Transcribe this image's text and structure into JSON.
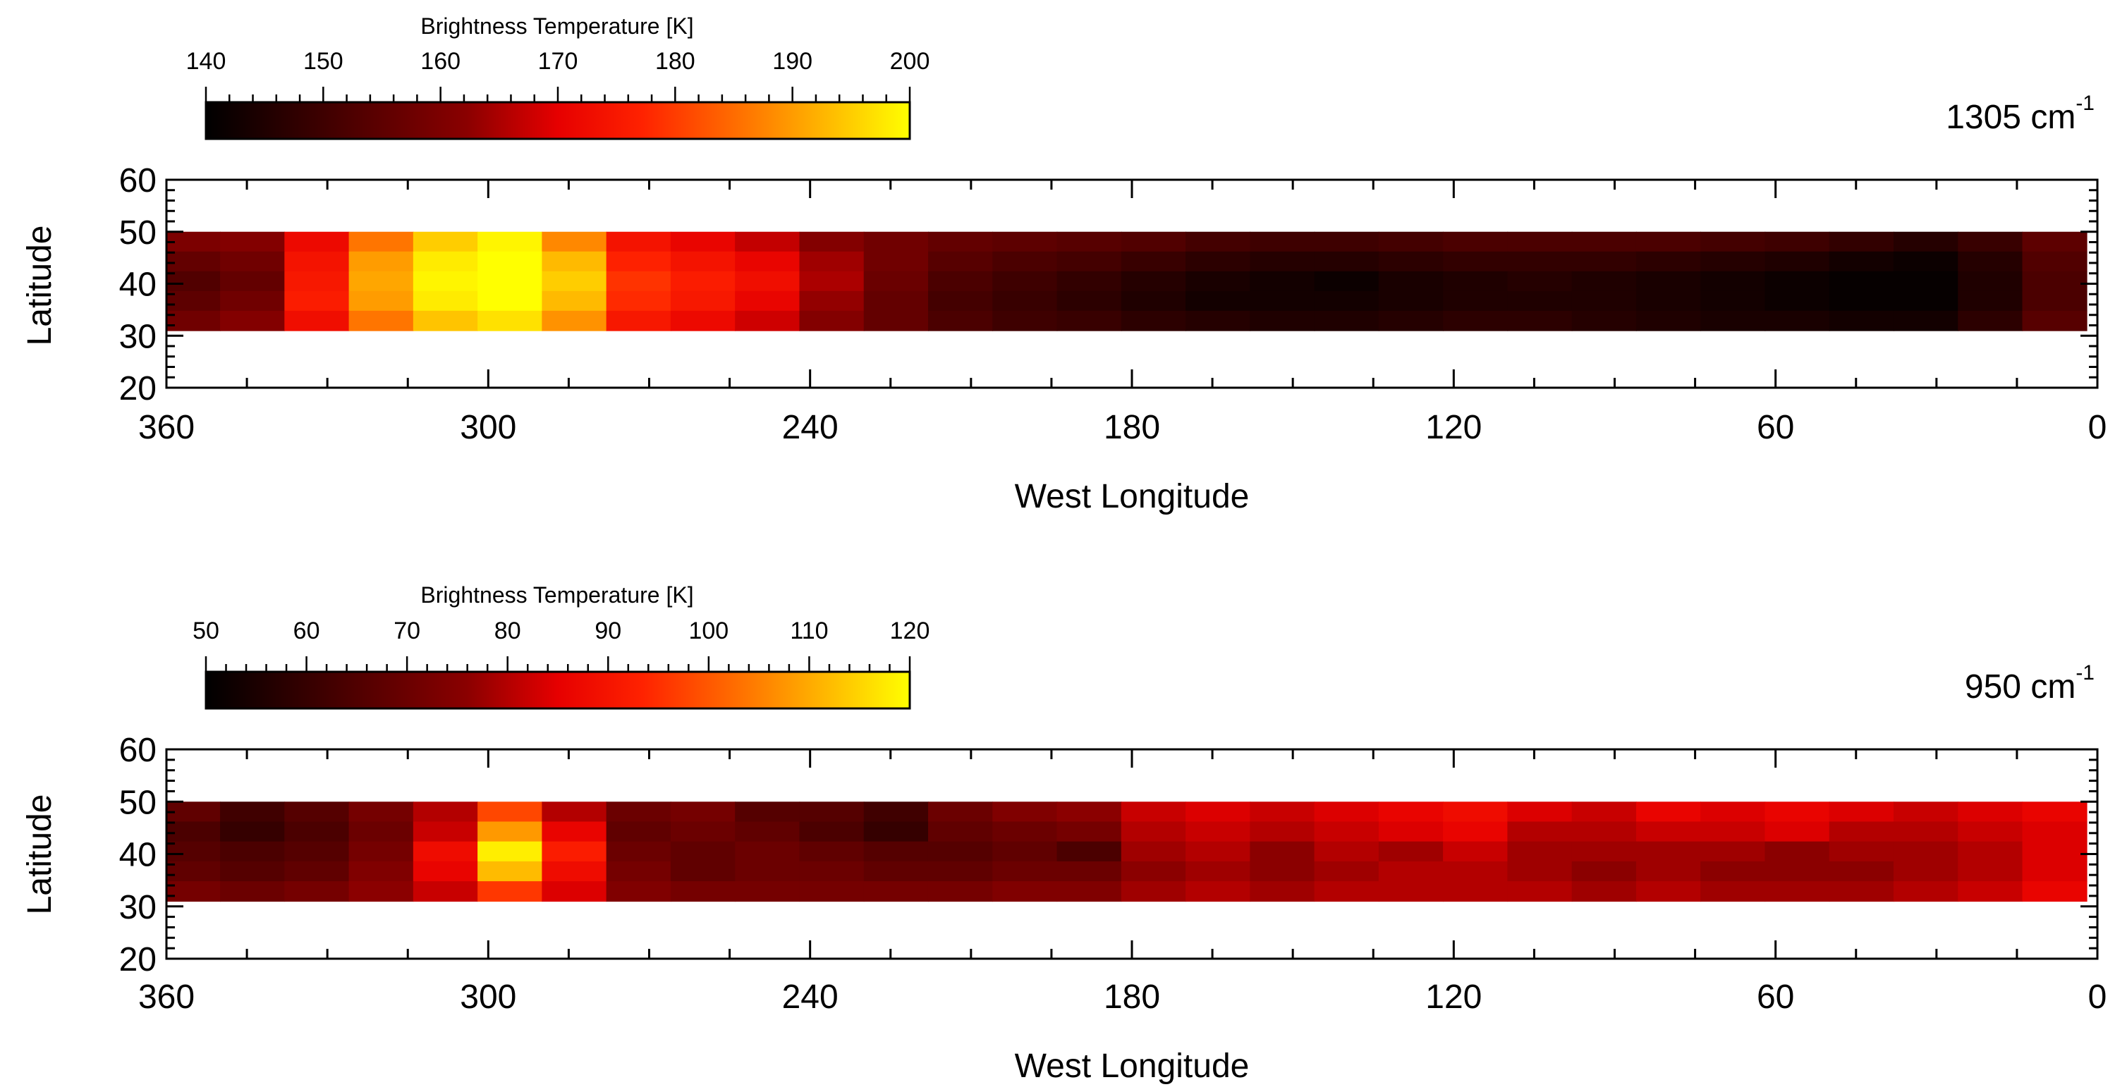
{
  "chart_data": [
    {
      "type": "heatmap",
      "wavenumber_value": "1305",
      "wavenumber_unit": "cm",
      "wavenumber_exponent": "-1",
      "colorbar": {
        "title": "Brightness Temperature [K]",
        "ticks": [
          140,
          150,
          160,
          170,
          180,
          190,
          200
        ],
        "range": [
          140,
          200
        ],
        "colormap": "heat (black-red-yellow)"
      },
      "xlabel": "West Longitude",
      "ylabel": "Latitude",
      "xlim": [
        360,
        0
      ],
      "ylim": [
        20,
        60
      ],
      "xticks": [
        360,
        300,
        240,
        180,
        120,
        60,
        0
      ],
      "yticks": [
        20,
        30,
        40,
        50,
        60
      ],
      "data_lat_range": [
        31,
        50
      ],
      "longitudes": [
        356,
        344,
        332,
        320,
        308,
        296,
        284,
        272,
        260,
        248,
        236,
        224,
        212,
        200,
        188,
        176,
        164,
        152,
        140,
        128,
        116,
        104,
        92,
        80,
        68,
        56,
        44,
        32,
        20,
        8
      ],
      "latitudes": [
        48,
        44,
        40,
        36,
        32
      ],
      "values": [
        [
          160,
          161,
          172,
          186,
          195,
          199,
          188,
          174,
          171,
          167,
          161,
          158,
          156,
          155,
          154,
          153,
          151,
          150,
          150,
          151,
          152,
          152,
          152,
          152,
          151,
          150,
          148,
          146,
          149,
          155
        ],
        [
          156,
          158,
          174,
          190,
          198,
          200,
          193,
          177,
          174,
          171,
          164,
          158,
          154,
          152,
          151,
          149,
          147,
          146,
          146,
          147,
          148,
          148,
          148,
          147,
          146,
          145,
          143,
          142,
          146,
          153
        ],
        [
          153,
          156,
          175,
          191,
          199,
          200,
          195,
          179,
          176,
          173,
          165,
          157,
          152,
          150,
          148,
          146,
          144,
          143,
          142,
          144,
          145,
          146,
          145,
          144,
          143,
          142,
          141,
          141,
          145,
          152
        ],
        [
          155,
          158,
          176,
          190,
          198,
          200,
          193,
          178,
          175,
          171,
          163,
          156,
          151,
          149,
          147,
          145,
          143,
          143,
          143,
          144,
          145,
          145,
          145,
          144,
          143,
          142,
          141,
          141,
          145,
          152
        ],
        [
          158,
          161,
          173,
          186,
          194,
          197,
          189,
          175,
          172,
          168,
          161,
          156,
          152,
          150,
          149,
          147,
          146,
          145,
          145,
          146,
          147,
          147,
          146,
          145,
          144,
          144,
          143,
          143,
          147,
          154
        ]
      ]
    },
    {
      "type": "heatmap",
      "wavenumber_value": "950",
      "wavenumber_unit": "cm",
      "wavenumber_exponent": "-1",
      "colorbar": {
        "title": "Brightness Temperature [K]",
        "ticks": [
          50,
          60,
          70,
          80,
          90,
          100,
          110,
          120
        ],
        "range": [
          50,
          120
        ],
        "colormap": "heat (black-red-yellow)"
      },
      "xlabel": "West Longitude",
      "ylabel": "Latitude",
      "xlim": [
        360,
        0
      ],
      "ylim": [
        20,
        60
      ],
      "xticks": [
        360,
        300,
        240,
        180,
        120,
        60,
        0
      ],
      "yticks": [
        20,
        30,
        40,
        50,
        60
      ],
      "data_lat_range": [
        31,
        50
      ],
      "longitudes": [
        356,
        344,
        332,
        320,
        308,
        296,
        284,
        272,
        260,
        248,
        236,
        224,
        212,
        200,
        188,
        176,
        164,
        152,
        140,
        128,
        116,
        104,
        92,
        80,
        68,
        56,
        44,
        32,
        20,
        8
      ],
      "latitudes": [
        48,
        44,
        40,
        36,
        32
      ],
      "values": [
        [
          68,
          62,
          66,
          72,
          80,
          98,
          80,
          70,
          72,
          66,
          66,
          62,
          70,
          74,
          76,
          82,
          84,
          82,
          84,
          86,
          88,
          84,
          82,
          86,
          84,
          86,
          84,
          82,
          84,
          86
        ],
        [
          64,
          60,
          64,
          70,
          82,
          108,
          86,
          68,
          70,
          68,
          64,
          60,
          68,
          70,
          72,
          80,
          82,
          80,
          82,
          84,
          86,
          80,
          80,
          82,
          82,
          84,
          80,
          80,
          82,
          84
        ],
        [
          66,
          64,
          66,
          72,
          88,
          118,
          92,
          70,
          68,
          70,
          68,
          66,
          66,
          68,
          64,
          78,
          80,
          76,
          80,
          78,
          82,
          78,
          78,
          78,
          78,
          76,
          78,
          78,
          80,
          84
        ],
        [
          68,
          66,
          68,
          74,
          86,
          112,
          88,
          72,
          68,
          70,
          70,
          68,
          68,
          70,
          70,
          76,
          78,
          76,
          78,
          80,
          80,
          78,
          76,
          78,
          76,
          76,
          76,
          78,
          80,
          84
        ],
        [
          72,
          70,
          72,
          76,
          82,
          96,
          84,
          74,
          72,
          72,
          72,
          72,
          72,
          74,
          74,
          78,
          80,
          78,
          80,
          80,
          80,
          80,
          78,
          80,
          78,
          78,
          78,
          80,
          82,
          86
        ]
      ]
    }
  ]
}
